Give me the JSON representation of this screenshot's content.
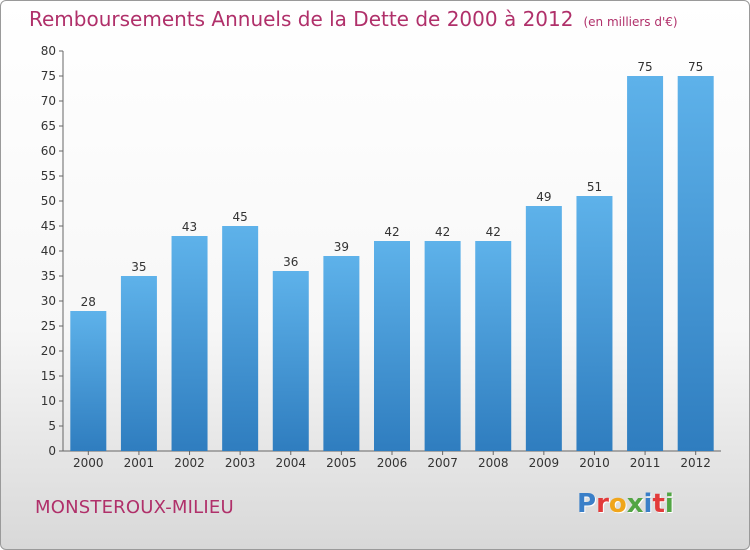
{
  "title": "Remboursements Annuels de la Dette de 2000 à 2012",
  "unit": "(en milliers d'€)",
  "town": "MONSTEROUX-MILIEU",
  "logo": {
    "letters": [
      "P",
      "r",
      "o",
      "x",
      "i",
      "t",
      "i"
    ],
    "colors": [
      "#3a7fc8",
      "#e23b3b",
      "#f0a51b",
      "#52a544",
      "#3a7fc8",
      "#e23b3b",
      "#52a544"
    ]
  },
  "colors": {
    "bar": "#4a9fe0",
    "bar_light": "#5aafe8",
    "bar_dark": "#2f7fc0",
    "title": "#b0306a"
  },
  "chart_data": {
    "type": "bar",
    "categories": [
      "2000",
      "2001",
      "2002",
      "2003",
      "2004",
      "2005",
      "2006",
      "2007",
      "2008",
      "2009",
      "2010",
      "2011",
      "2012"
    ],
    "values": [
      28,
      35,
      43,
      45,
      36,
      39,
      42,
      42,
      42,
      49,
      51,
      75,
      75
    ],
    "title": "Remboursements Annuels de la Dette de 2000 à 2012",
    "xlabel": "",
    "ylabel": "",
    "ylim": [
      0,
      80
    ],
    "yticks": [
      0,
      5,
      10,
      15,
      20,
      25,
      30,
      35,
      40,
      45,
      50,
      55,
      60,
      65,
      70,
      75,
      80
    ],
    "grid": false
  }
}
